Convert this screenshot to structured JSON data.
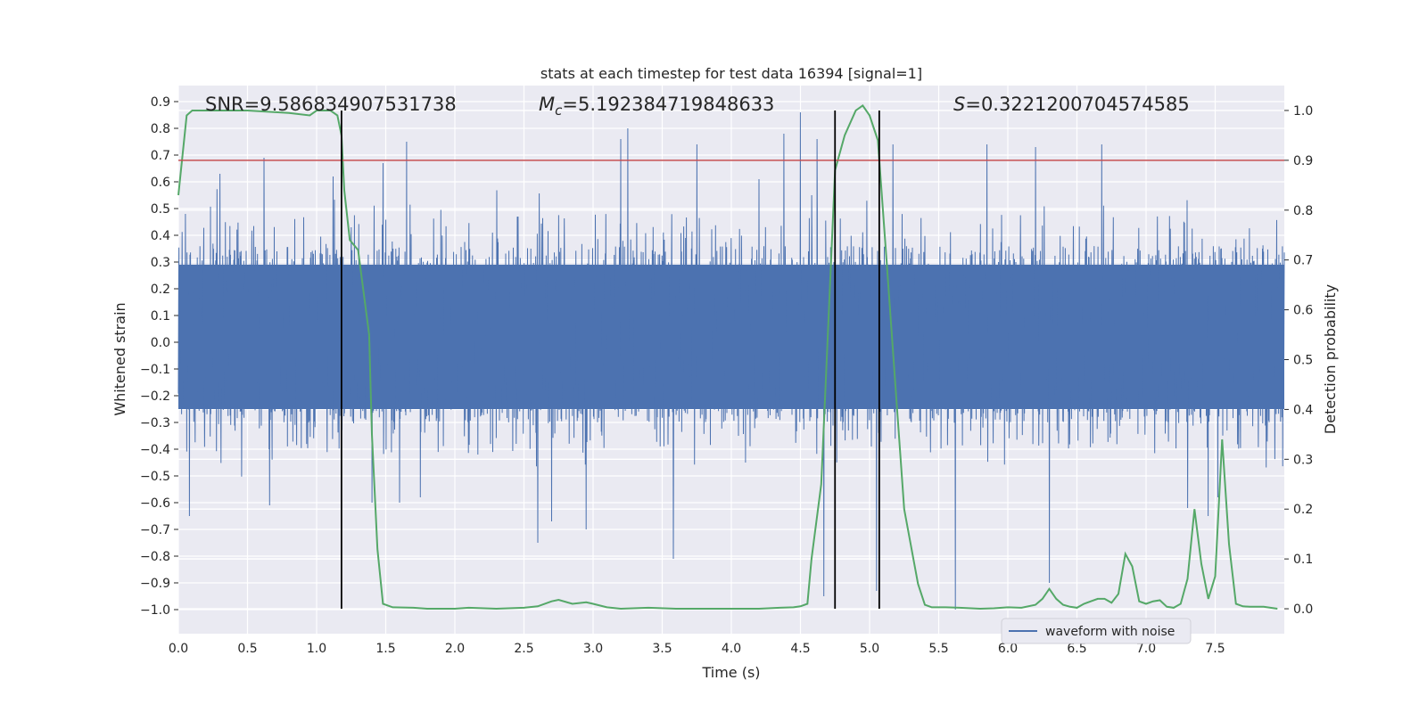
{
  "chart_data": {
    "type": "line",
    "title": "stats at each timestep for test data 16394 [signal=1]",
    "xlabel": "Time (s)",
    "ylabel_left": "Whitened strain",
    "ylabel_right": "Detection probability",
    "xlim": [
      0.0,
      8.0
    ],
    "ylim_left": [
      -1.09,
      0.96
    ],
    "ylim_right": [
      -0.05,
      1.05
    ],
    "x_ticks": [
      "0.0",
      "0.5",
      "1.0",
      "1.5",
      "2.0",
      "2.5",
      "3.0",
      "3.5",
      "4.0",
      "4.5",
      "5.0",
      "5.5",
      "6.0",
      "6.5",
      "7.0",
      "7.5"
    ],
    "y_left_ticks": [
      "0.9",
      "0.8",
      "0.7",
      "0.6",
      "0.5",
      "0.4",
      "0.3",
      "0.2",
      "0.1",
      "0.0",
      "−0.1",
      "−0.2",
      "−0.3",
      "−0.4",
      "−0.5",
      "−0.6",
      "−0.7",
      "−0.8",
      "−0.9",
      "−1.0"
    ],
    "y_right_ticks": [
      "1.0",
      "0.9",
      "0.8",
      "0.7",
      "0.6",
      "0.5",
      "0.4",
      "0.3",
      "0.2",
      "0.1",
      "0.0"
    ],
    "annotations": {
      "snr": "SNR=9.586834907531738",
      "mc_symbol": "M",
      "mc_sub": "c",
      "mc_value": "=5.192384719848633",
      "s_symbol": "S",
      "s_value": "=0.3221200704574585"
    },
    "legend": [
      "waveform with noise"
    ],
    "threshold": 0.9,
    "vertical_lines": [
      1.18,
      4.75,
      5.07
    ],
    "series": [
      {
        "name": "waveform with noise",
        "color": "#4c72b0",
        "axis": "left",
        "x_range": [
          0.0,
          8.0
        ],
        "n_samples": 4096,
        "typical_amplitude": [
          -0.45,
          0.5
        ],
        "peaks": [
          [
            0.05,
            0.48
          ],
          [
            0.08,
            -0.65
          ],
          [
            0.3,
            0.63
          ],
          [
            0.62,
            0.69
          ],
          [
            0.66,
            -0.61
          ],
          [
            1.12,
            0.62
          ],
          [
            1.18,
            -0.52
          ],
          [
            1.25,
            0.43
          ],
          [
            1.4,
            -0.6
          ],
          [
            1.48,
            0.67
          ],
          [
            1.6,
            -0.6
          ],
          [
            1.65,
            0.75
          ],
          [
            1.75,
            -0.58
          ],
          [
            2.6,
            -0.75
          ],
          [
            2.7,
            -0.67
          ],
          [
            2.95,
            -0.7
          ],
          [
            3.2,
            0.76
          ],
          [
            3.25,
            0.8
          ],
          [
            3.58,
            -0.81
          ],
          [
            3.75,
            0.74
          ],
          [
            4.2,
            0.61
          ],
          [
            4.38,
            0.78
          ],
          [
            4.5,
            0.86
          ],
          [
            4.62,
            0.76
          ],
          [
            4.67,
            -0.95
          ],
          [
            5.05,
            -0.93
          ],
          [
            5.17,
            0.74
          ],
          [
            5.62,
            -1.0
          ],
          [
            5.85,
            0.74
          ],
          [
            6.2,
            0.73
          ],
          [
            6.3,
            -0.9
          ],
          [
            6.68,
            0.74
          ],
          [
            7.3,
            -0.62
          ],
          [
            7.45,
            -0.65
          ],
          [
            7.52,
            -0.58
          ]
        ]
      },
      {
        "name": "Detection probability",
        "color": "#55a868",
        "axis": "right",
        "x": [
          0.0,
          0.06,
          0.1,
          0.15,
          0.3,
          0.5,
          0.8,
          0.95,
          1.0,
          1.1,
          1.15,
          1.18,
          1.2,
          1.24,
          1.3,
          1.38,
          1.4,
          1.44,
          1.48,
          1.55,
          1.7,
          1.8,
          2.0,
          2.1,
          2.3,
          2.5,
          2.6,
          2.7,
          2.75,
          2.85,
          2.95,
          3.0,
          3.1,
          3.2,
          3.4,
          3.6,
          3.8,
          4.0,
          4.2,
          4.35,
          4.45,
          4.5,
          4.55,
          4.58,
          4.65,
          4.75,
          4.82,
          4.9,
          4.95,
          5.0,
          5.06,
          5.12,
          5.25,
          5.35,
          5.4,
          5.45,
          5.55,
          5.65,
          5.8,
          5.9,
          6.0,
          6.1,
          6.2,
          6.25,
          6.3,
          6.35,
          6.4,
          6.45,
          6.5,
          6.55,
          6.6,
          6.65,
          6.7,
          6.75,
          6.8,
          6.85,
          6.9,
          6.95,
          7.0,
          7.05,
          7.1,
          7.15,
          7.2,
          7.25,
          7.3,
          7.35,
          7.4,
          7.45,
          7.5,
          7.55,
          7.6,
          7.65,
          7.7,
          7.75,
          7.8,
          7.85,
          7.9,
          7.95
        ],
        "values": [
          0.83,
          0.99,
          1.0,
          1.0,
          1.0,
          1.0,
          0.995,
          0.99,
          1.0,
          1.0,
          0.99,
          0.95,
          0.84,
          0.74,
          0.72,
          0.55,
          0.35,
          0.12,
          0.01,
          0.003,
          0.002,
          0.0,
          0.0,
          0.002,
          0.0,
          0.002,
          0.005,
          0.015,
          0.018,
          0.01,
          0.013,
          0.01,
          0.003,
          0.0,
          0.002,
          0.0,
          0.0,
          0.0,
          0.0,
          0.002,
          0.003,
          0.005,
          0.01,
          0.1,
          0.25,
          0.88,
          0.95,
          1.0,
          1.01,
          0.99,
          0.94,
          0.71,
          0.2,
          0.05,
          0.008,
          0.003,
          0.003,
          0.002,
          0.0,
          0.001,
          0.003,
          0.002,
          0.008,
          0.02,
          0.04,
          0.02,
          0.008,
          0.004,
          0.002,
          0.01,
          0.015,
          0.02,
          0.02,
          0.012,
          0.03,
          0.11,
          0.085,
          0.015,
          0.01,
          0.015,
          0.017,
          0.004,
          0.002,
          0.01,
          0.06,
          0.2,
          0.09,
          0.02,
          0.065,
          0.34,
          0.13,
          0.01,
          0.005,
          0.004,
          0.004,
          0.004,
          0.002,
          0.0
        ]
      },
      {
        "name": "threshold",
        "color": "#c44e52",
        "axis": "right",
        "values": [
          0.9
        ]
      }
    ]
  }
}
